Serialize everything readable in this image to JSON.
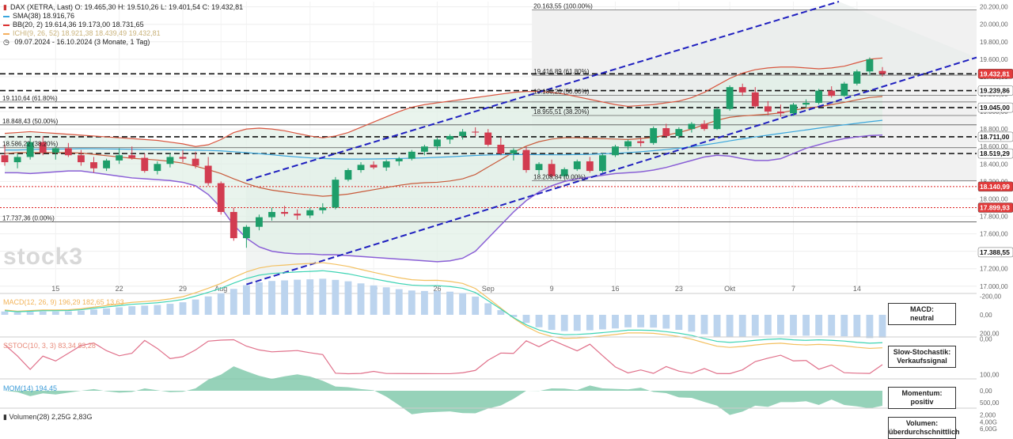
{
  "header": {
    "line1": "DAX (XETRA, Last)  O: 19.465,30  H: 19.510,26  L: 19.401,54  C: 19.432,81",
    "sma": "SMA(38)  18.916,76",
    "bb": "BB(20, 2)  19.614,36  19.173,00  18.731,65",
    "ichimoku": "ICHI(9, 26, 52)  18.921,38  18.439,49  19.432,81",
    "range": "09.07.2024 - 16.10.2024  (3 Monate, 1 Tag)"
  },
  "watermark": "stock3",
  "fib_left": [
    {
      "label": "19.110,64 (61.80%)",
      "value": 19110.64
    },
    {
      "label": "18.848,43 (50.00%)",
      "value": 18848.43
    },
    {
      "label": "18.586,22 (38.20%)",
      "value": 18586.22
    },
    {
      "label": "17.737,36 (0.00%)",
      "value": 17737.36
    }
  ],
  "fib_right": [
    {
      "label": "20.163,55 (100.00%)",
      "value": 20163.55
    },
    {
      "label": "19.416,89 (61.80%)",
      "value": 19416.89
    },
    {
      "label": "19.186,20 (50.00%)",
      "value": 19186.2
    },
    {
      "label": "18.955,51 (38.20%)",
      "value": 18955.51
    },
    {
      "label": "18.208,84 (0.00%)",
      "value": 18208.84
    }
  ],
  "price_labels": [
    {
      "text": "19.432,81",
      "value": 19432.81,
      "bg": "#e23b3b",
      "fg": "#ffffff"
    },
    {
      "text": "19.239,86",
      "value": 19239.86,
      "bg": "#ffffff",
      "fg": "#111111"
    },
    {
      "text": "19.045,00",
      "value": 19045.0,
      "bg": "#ffffff",
      "fg": "#111111"
    },
    {
      "text": "18.711,00",
      "value": 18711.0,
      "bg": "#ffffff",
      "fg": "#111111"
    },
    {
      "text": "18.519,29",
      "value": 18519.29,
      "bg": "#ffffff",
      "fg": "#111111"
    },
    {
      "text": "18.140,99",
      "value": 18140.99,
      "bg": "#e23b3b",
      "fg": "#ffffff"
    },
    {
      "text": "17.899,93",
      "value": 17899.93,
      "bg": "#e23b3b",
      "fg": "#ffffff"
    },
    {
      "text": "17.388,55",
      "value": 17388.55,
      "bg": "#ffffff",
      "fg": "#111111"
    }
  ],
  "macd": {
    "label": "MACD(12, 26, 9)  196,29  182,65  13,63",
    "badge": [
      "MACD:",
      "neutral"
    ],
    "ticks": [
      "200,00",
      "0,00",
      "-200,00"
    ]
  },
  "stoch": {
    "label": "SSTOC(10, 3, 3)  83,34  83,28",
    "badge": [
      "Slow-Stochastik:",
      "Verkaufssignal"
    ],
    "ticks": [
      "100,00",
      "0,00"
    ]
  },
  "mom": {
    "label": "MOM(14)  194,45",
    "badge": [
      "Momentum:",
      "positiv"
    ],
    "ticks": [
      "500,00",
      "0,00"
    ]
  },
  "vol": {
    "label": "Volumen(28)  2,25G  2,83G",
    "badge": [
      "Volumen:",
      "überdurchschnittlich"
    ],
    "ticks": [
      "6,00G",
      "4,00G",
      "2,000"
    ]
  },
  "chart_data": {
    "type": "candlestick",
    "title": "DAX (XETRA, Last)",
    "y_ticks": [
      17000,
      17200,
      17400,
      17600,
      17800,
      18000,
      18200,
      18400,
      18600,
      18800,
      19000,
      19200,
      19400,
      19600,
      19800,
      20000,
      20200
    ],
    "y_tick_labels": [
      "17.000,00",
      "17.200,00",
      "17.400,00",
      "17.600,00",
      "17.800,00",
      "18.000,00",
      "18.200,00",
      "18.400,00",
      "18.600,00",
      "18.800,00",
      "19.000,00",
      "19.200,00",
      "19.400,00",
      "19.600,00",
      "19.800,00",
      "20.000,00",
      "20.200,00"
    ],
    "ylim": [
      16980,
      20260
    ],
    "x_labels": [
      "15",
      "22",
      "29",
      "Aug",
      "5",
      "12",
      "19",
      "26",
      "Sep",
      "9",
      "16",
      "23",
      "Okt",
      "7",
      "14"
    ],
    "x_label_index": [
      4,
      9,
      14,
      17,
      19,
      24,
      29,
      34,
      38,
      43,
      48,
      53,
      57,
      62,
      67
    ],
    "candles": [
      [
        18500,
        18620,
        18380,
        18420
      ],
      [
        18420,
        18520,
        18350,
        18480
      ],
      [
        18480,
        18700,
        18450,
        18650
      ],
      [
        18650,
        18720,
        18500,
        18530
      ],
      [
        18530,
        18600,
        18450,
        18580
      ],
      [
        18580,
        18640,
        18480,
        18500
      ],
      [
        18500,
        18560,
        18380,
        18420
      ],
      [
        18420,
        18480,
        18300,
        18350
      ],
      [
        18350,
        18460,
        18320,
        18440
      ],
      [
        18440,
        18580,
        18400,
        18500
      ],
      [
        18500,
        18600,
        18450,
        18470
      ],
      [
        18470,
        18520,
        18300,
        18320
      ],
      [
        18320,
        18430,
        18280,
        18400
      ],
      [
        18400,
        18520,
        18360,
        18480
      ],
      [
        18480,
        18560,
        18420,
        18460
      ],
      [
        18460,
        18540,
        18350,
        18380
      ],
      [
        18380,
        18480,
        18150,
        18180
      ],
      [
        18180,
        18200,
        17820,
        17850
      ],
      [
        17850,
        17900,
        17520,
        17550
      ],
      [
        17550,
        17700,
        17440,
        17680
      ],
      [
        17680,
        17820,
        17640,
        17790
      ],
      [
        17790,
        17900,
        17750,
        17850
      ],
      [
        17850,
        17920,
        17800,
        17830
      ],
      [
        17830,
        17880,
        17760,
        17810
      ],
      [
        17810,
        17900,
        17780,
        17870
      ],
      [
        17870,
        17950,
        17830,
        17900
      ],
      [
        17900,
        18250,
        17880,
        18220
      ],
      [
        18220,
        18350,
        18200,
        18330
      ],
      [
        18330,
        18420,
        18300,
        18390
      ],
      [
        18390,
        18430,
        18340,
        18360
      ],
      [
        18360,
        18450,
        18320,
        18430
      ],
      [
        18430,
        18480,
        18380,
        18460
      ],
      [
        18460,
        18560,
        18440,
        18540
      ],
      [
        18540,
        18620,
        18500,
        18600
      ],
      [
        18600,
        18700,
        18560,
        18680
      ],
      [
        18680,
        18740,
        18630,
        18720
      ],
      [
        18720,
        18800,
        18680,
        18770
      ],
      [
        18770,
        18820,
        18720,
        18760
      ],
      [
        18760,
        18800,
        18600,
        18620
      ],
      [
        18620,
        18700,
        18500,
        18520
      ],
      [
        18520,
        18580,
        18440,
        18560
      ],
      [
        18560,
        18600,
        18300,
        18330
      ],
      [
        18330,
        18420,
        18280,
        18400
      ],
      [
        18400,
        18450,
        18240,
        18260
      ],
      [
        18260,
        18360,
        18230,
        18340
      ],
      [
        18340,
        18450,
        18320,
        18430
      ],
      [
        18430,
        18480,
        18300,
        18320
      ],
      [
        18320,
        18520,
        18300,
        18500
      ],
      [
        18500,
        18620,
        18480,
        18600
      ],
      [
        18600,
        18680,
        18560,
        18660
      ],
      [
        18660,
        18700,
        18600,
        18640
      ],
      [
        18640,
        18830,
        18620,
        18810
      ],
      [
        18810,
        18860,
        18700,
        18720
      ],
      [
        18720,
        18820,
        18690,
        18800
      ],
      [
        18800,
        18880,
        18760,
        18860
      ],
      [
        18860,
        18900,
        18780,
        18800
      ],
      [
        18800,
        19050,
        18790,
        19030
      ],
      [
        19030,
        19300,
        19010,
        19280
      ],
      [
        19280,
        19320,
        19180,
        19220
      ],
      [
        19220,
        19280,
        19040,
        19060
      ],
      [
        19060,
        19120,
        18960,
        19000
      ],
      [
        19000,
        19080,
        18940,
        18980
      ],
      [
        18980,
        19100,
        18950,
        19080
      ],
      [
        19080,
        19140,
        19040,
        19100
      ],
      [
        19100,
        19260,
        19080,
        19240
      ],
      [
        19240,
        19290,
        19160,
        19180
      ],
      [
        19180,
        19340,
        19170,
        19320
      ],
      [
        19320,
        19480,
        19300,
        19460
      ],
      [
        19460,
        19620,
        19420,
        19600
      ],
      [
        19465.3,
        19510.26,
        19401.54,
        19432.81
      ]
    ],
    "sma": [
      18560,
      18560,
      18565,
      18570,
      18570,
      18572,
      18575,
      18574,
      18572,
      18570,
      18568,
      18565,
      18563,
      18562,
      18560,
      18558,
      18555,
      18550,
      18540,
      18530,
      18518,
      18505,
      18492,
      18480,
      18470,
      18462,
      18458,
      18456,
      18456,
      18457,
      18459,
      18462,
      18466,
      18470,
      18476,
      18482,
      18490,
      18498,
      18503,
      18506,
      18508,
      18508,
      18506,
      18505,
      18505,
      18508,
      18510,
      18516,
      18522,
      18530,
      18540,
      18552,
      18565,
      18580,
      18598,
      18618,
      18640,
      18665,
      18688,
      18710,
      18730,
      18750,
      18770,
      18790,
      18810,
      18830,
      18848,
      18866,
      18884,
      18900
    ],
    "bb_upper": [
      18750,
      18760,
      18770,
      18760,
      18750,
      18740,
      18730,
      18720,
      18710,
      18700,
      18690,
      18680,
      18670,
      18650,
      18630,
      18600,
      18620,
      18680,
      18760,
      18800,
      18810,
      18800,
      18780,
      18750,
      18720,
      18700,
      18720,
      18760,
      18820,
      18880,
      18940,
      19000,
      19050,
      19080,
      19100,
      19120,
      19140,
      19160,
      19180,
      19200,
      19220,
      19230,
      19230,
      19220,
      19200,
      19170,
      19140,
      19110,
      19080,
      19060,
      19070,
      19080,
      19100,
      19120,
      19160,
      19220,
      19300,
      19380,
      19440,
      19480,
      19500,
      19510,
      19510,
      19500,
      19490,
      19500,
      19520,
      19560,
      19600,
      19614
    ],
    "bb_lower": [
      18300,
      18300,
      18290,
      18300,
      18310,
      18320,
      18320,
      18300,
      18280,
      18260,
      18240,
      18230,
      18220,
      18210,
      18190,
      18150,
      18050,
      17900,
      17700,
      17550,
      17450,
      17400,
      17380,
      17370,
      17370,
      17360,
      17360,
      17350,
      17340,
      17330,
      17320,
      17310,
      17300,
      17290,
      17280,
      17290,
      17320,
      17400,
      17550,
      17700,
      17850,
      17980,
      18080,
      18150,
      18200,
      18230,
      18250,
      18270,
      18290,
      18300,
      18310,
      18330,
      18360,
      18400,
      18440,
      18480,
      18500,
      18490,
      18460,
      18440,
      18440,
      18460,
      18520,
      18580,
      18620,
      18660,
      18690,
      18710,
      18725,
      18731
    ],
    "bb_mid": [
      18520,
      18530,
      18530,
      18530,
      18530,
      18530,
      18525,
      18510,
      18495,
      18480,
      18465,
      18455,
      18445,
      18430,
      18410,
      18375,
      18335,
      18290,
      18230,
      18175,
      18130,
      18100,
      18080,
      18060,
      18045,
      18030,
      18040,
      18055,
      18080,
      18105,
      18130,
      18155,
      18175,
      18185,
      18190,
      18205,
      18230,
      18280,
      18365,
      18450,
      18535,
      18605,
      18655,
      18685,
      18700,
      18700,
      18695,
      18690,
      18685,
      18680,
      18690,
      18705,
      18730,
      18760,
      18800,
      18850,
      18900,
      18935,
      18950,
      18960,
      18970,
      18985,
      19015,
      19040,
      19055,
      19080,
      19105,
      19135,
      19162,
      19173
    ]
  }
}
